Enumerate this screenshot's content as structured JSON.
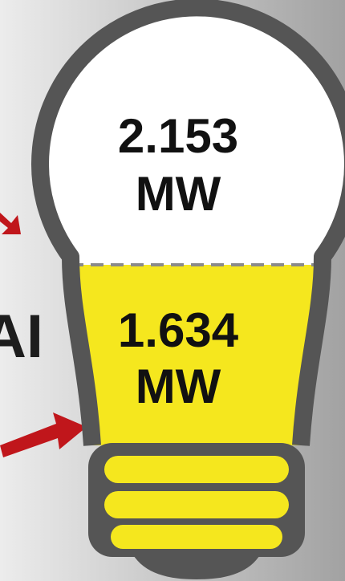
{
  "label": "AI",
  "top": {
    "value": "2.153",
    "unit": "MW"
  },
  "bottom": {
    "value": "1.634",
    "unit": "MW"
  }
}
